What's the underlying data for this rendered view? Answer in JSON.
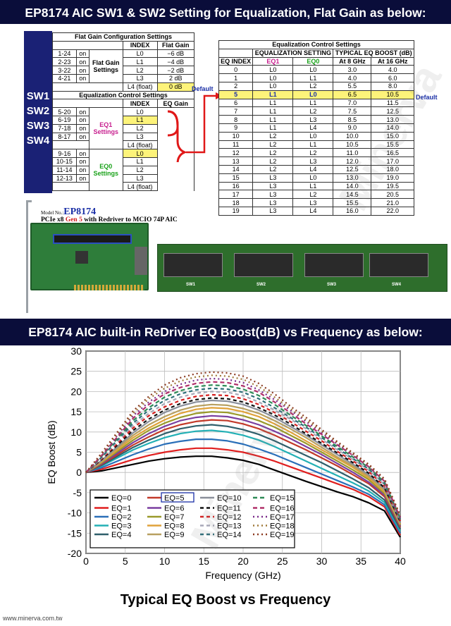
{
  "header": {
    "title1": "EP8174 AIC SW1 & SW2 Setting for Equalization, Flat Gain as below:",
    "title2": "EP8174 AIC built-in ReDriver EQ Boost(dB) vs Frequency as below:"
  },
  "switches": [
    "SW1",
    "SW2",
    "SW3",
    "SW4"
  ],
  "flat_gain": {
    "title": "Flat Gain Configuration Settings",
    "col_index": "INDEX",
    "col_gain": "Flat Gain",
    "group_label": "Flat Gain Settings",
    "rows": [
      {
        "pins": "1-24",
        "state": "on",
        "index": "L0",
        "gain": "−6 dB"
      },
      {
        "pins": "2-23",
        "state": "on",
        "index": "L1",
        "gain": "−4 dB"
      },
      {
        "pins": "3-22",
        "state": "on",
        "index": "L2",
        "gain": "−2 dB"
      },
      {
        "pins": "4-21",
        "state": "on",
        "index": "L3",
        "gain": "2 dB"
      },
      {
        "pins": "",
        "state": "",
        "index": "L4 (float)",
        "gain": "0 dB"
      }
    ],
    "default_label": "Default"
  },
  "eq_control_left": {
    "title": "Equalization Control Settings",
    "col_index": "INDEX",
    "col_gain": "EQ Gain",
    "eq1_label": "EQ1 Settings",
    "eq0_label": "EQ0 Settings",
    "eq1_rows": [
      {
        "pins": "5-20",
        "state": "on",
        "index": "L0"
      },
      {
        "pins": "6-19",
        "state": "on",
        "index": "L1"
      },
      {
        "pins": "7-18",
        "state": "on",
        "index": "L2"
      },
      {
        "pins": "8-17",
        "state": "on",
        "index": "L3"
      },
      {
        "pins": "",
        "state": "",
        "index": "L4 (float)"
      }
    ],
    "eq0_rows": [
      {
        "pins": "9-16",
        "state": "on",
        "index": "L0"
      },
      {
        "pins": "10-15",
        "state": "on",
        "index": "L1"
      },
      {
        "pins": "11-14",
        "state": "on",
        "index": "L2"
      },
      {
        "pins": "12-13",
        "state": "on",
        "index": "L3"
      },
      {
        "pins": "",
        "state": "",
        "index": "L4 (float)"
      }
    ]
  },
  "eq_table": {
    "title": "Equalization Control Settings",
    "h_setting": "EQUALIZATION SETTING",
    "h_boost": "TYPICAL EQ BOOST (dB)",
    "cols": [
      "EQ INDEX",
      "EQ1",
      "EQ0",
      "At 8 GHz",
      "At 16 GHz"
    ],
    "rows": [
      [
        "0",
        "L0",
        "L0",
        "3.0",
        "4.0"
      ],
      [
        "1",
        "L0",
        "L1",
        "4.0",
        "6.0"
      ],
      [
        "2",
        "L0",
        "L2",
        "5.5",
        "8.0"
      ],
      [
        "5",
        "L1",
        "L0",
        "6.5",
        "10.5"
      ],
      [
        "6",
        "L1",
        "L1",
        "7.0",
        "11.5"
      ],
      [
        "7",
        "L1",
        "L2",
        "7.5",
        "12.5"
      ],
      [
        "8",
        "L1",
        "L3",
        "8.5",
        "13.0"
      ],
      [
        "9",
        "L1",
        "L4",
        "9.0",
        "14.0"
      ],
      [
        "10",
        "L2",
        "L0",
        "10.0",
        "15.0"
      ],
      [
        "11",
        "L2",
        "L1",
        "10.5",
        "15.5"
      ],
      [
        "12",
        "L2",
        "L2",
        "11.0",
        "16.5"
      ],
      [
        "13",
        "L2",
        "L3",
        "12.0",
        "17.0"
      ],
      [
        "14",
        "L2",
        "L4",
        "12.5",
        "18.0"
      ],
      [
        "15",
        "L3",
        "L0",
        "13.0",
        "19.0"
      ],
      [
        "16",
        "L3",
        "L1",
        "14.0",
        "19.5"
      ],
      [
        "17",
        "L3",
        "L2",
        "14.5",
        "20.5"
      ],
      [
        "18",
        "L3",
        "L3",
        "15.5",
        "21.0"
      ],
      [
        "19",
        "L3",
        "L4",
        "16.0",
        "22.0"
      ]
    ],
    "default_label": "Default"
  },
  "product": {
    "model_prefix": "Model No.:",
    "model": "EP8174",
    "desc_a": "PCIe x8 ",
    "desc_gen": "Gen 5",
    "desc_b": " with Redriver to MCIO 74P AIC",
    "sw_labels": [
      "SW1",
      "SW2",
      "SW3",
      "SW4"
    ]
  },
  "footer": {
    "url": "www.minerva.com.tw",
    "caption": "Typical EQ Boost vs Frequency"
  },
  "watermark": "Minerva",
  "chart_data": {
    "type": "line",
    "title": "",
    "xlabel": "Frequency (GHz)",
    "ylabel": "EQ Boost (dB)",
    "xlim": [
      0,
      40
    ],
    "ylim": [
      -20,
      30
    ],
    "xticks": [
      0,
      5,
      10,
      15,
      20,
      25,
      30,
      35,
      40
    ],
    "yticks": [
      -20,
      -15,
      -10,
      -5,
      0,
      5,
      10,
      15,
      20,
      25,
      30
    ],
    "grid": true,
    "legend_position": "bottom-left",
    "x": [
      0,
      2,
      4,
      6,
      8,
      10,
      12,
      14,
      16,
      18,
      20,
      22,
      24,
      26,
      28,
      30,
      32,
      34,
      36,
      38,
      40
    ],
    "series": [
      {
        "name": "EQ=0",
        "color": "#000000",
        "dash": "",
        "values": [
          0,
          0.4,
          1.2,
          2.0,
          2.8,
          3.4,
          3.8,
          4.0,
          4.0,
          3.6,
          3.0,
          2.0,
          0.6,
          -0.8,
          -2.2,
          -3.5,
          -4.8,
          -6.0,
          -7.5,
          -9.5,
          -16
        ]
      },
      {
        "name": "EQ=1",
        "color": "#e01f1f",
        "dash": "",
        "values": [
          0,
          0.8,
          2.0,
          3.2,
          4.2,
          5.0,
          5.6,
          6.0,
          6.0,
          5.6,
          5.0,
          4.0,
          2.8,
          1.4,
          0.0,
          -1.4,
          -2.8,
          -4.2,
          -6.0,
          -8.5,
          -15.5
        ]
      },
      {
        "name": "EQ=2",
        "color": "#2a6fb8",
        "dash": "",
        "values": [
          0,
          1.2,
          2.8,
          4.4,
          5.8,
          7.0,
          7.7,
          8.2,
          8.2,
          7.8,
          7.0,
          5.8,
          4.4,
          2.8,
          1.2,
          -0.4,
          -2.0,
          -3.6,
          -5.4,
          -8.0,
          -15
        ]
      },
      {
        "name": "EQ=3",
        "color": "#23b0b5",
        "dash": "",
        "values": [
          0,
          1.6,
          3.6,
          5.6,
          7.2,
          8.6,
          9.6,
          10.2,
          10.4,
          10.0,
          9.2,
          8.0,
          6.4,
          4.6,
          2.8,
          1.0,
          -0.8,
          -2.6,
          -4.6,
          -7.4,
          -14.5
        ]
      },
      {
        "name": "EQ=4",
        "color": "#2f5f6b",
        "dash": "",
        "values": [
          0,
          1.8,
          4.0,
          6.2,
          8.0,
          9.6,
          10.8,
          11.5,
          11.8,
          11.4,
          10.6,
          9.4,
          7.8,
          6.0,
          4.2,
          2.4,
          0.4,
          -1.6,
          -3.8,
          -6.8,
          -14
        ]
      },
      {
        "name": "EQ=5",
        "color": "#c23a2a",
        "dash": "",
        "values": [
          0,
          2.0,
          4.4,
          6.8,
          8.8,
          10.6,
          11.8,
          12.6,
          13.0,
          12.8,
          12.0,
          10.8,
          9.2,
          7.4,
          5.6,
          3.6,
          1.6,
          -0.6,
          -2.8,
          -6.0,
          -13.5
        ]
      },
      {
        "name": "EQ=6",
        "color": "#7a3fa0",
        "dash": "",
        "values": [
          0,
          2.2,
          4.8,
          7.4,
          9.6,
          11.4,
          12.8,
          13.6,
          14.0,
          13.8,
          13.0,
          11.8,
          10.2,
          8.4,
          6.4,
          4.4,
          2.2,
          0.0,
          -2.4,
          -5.6,
          -13.2
        ]
      },
      {
        "name": "EQ=7",
        "color": "#9a9a2a",
        "dash": "",
        "values": [
          0,
          2.4,
          5.2,
          8.0,
          10.4,
          12.2,
          13.6,
          14.6,
          15.0,
          14.8,
          14.0,
          12.8,
          11.2,
          9.2,
          7.2,
          5.0,
          2.8,
          0.6,
          -1.8,
          -5.2,
          -13
        ]
      },
      {
        "name": "EQ=8",
        "color": "#e0a23a",
        "dash": "",
        "values": [
          0,
          2.6,
          5.6,
          8.6,
          11.0,
          13.0,
          14.6,
          15.6,
          16.0,
          15.8,
          15.0,
          13.8,
          12.0,
          10.0,
          7.8,
          5.6,
          3.4,
          1.2,
          -1.4,
          -4.8,
          -12.8
        ]
      },
      {
        "name": "EQ=9",
        "color": "#b8a060",
        "dash": "",
        "values": [
          0,
          2.8,
          6.0,
          9.2,
          11.8,
          13.8,
          15.4,
          16.4,
          16.8,
          16.6,
          15.8,
          14.6,
          12.8,
          10.8,
          8.6,
          6.2,
          3.8,
          1.6,
          -1.0,
          -4.4,
          -12.6
        ]
      },
      {
        "name": "EQ=10",
        "color": "#8a8f9a",
        "dash": "",
        "values": [
          0,
          3.0,
          6.4,
          9.8,
          12.6,
          14.8,
          16.4,
          17.4,
          17.8,
          17.6,
          16.8,
          15.4,
          13.6,
          11.4,
          9.2,
          6.8,
          4.4,
          2.0,
          -0.6,
          -4.0,
          -12.4
        ]
      },
      {
        "name": "EQ=11",
        "color": "#111111",
        "dash": "5,4",
        "values": [
          0,
          3.2,
          6.8,
          10.4,
          13.2,
          15.4,
          17.0,
          18.0,
          18.4,
          18.2,
          17.4,
          16.0,
          14.2,
          12.0,
          9.6,
          7.2,
          4.8,
          2.4,
          -0.2,
          -3.8,
          -12.2
        ]
      },
      {
        "name": "EQ=12",
        "color": "#d62020",
        "dash": "5,4",
        "values": [
          0,
          3.4,
          7.2,
          11.0,
          14.0,
          16.2,
          17.8,
          18.8,
          19.2,
          19.0,
          18.2,
          16.8,
          14.8,
          12.6,
          10.2,
          7.8,
          5.2,
          2.8,
          0.2,
          -3.4,
          -12
        ]
      },
      {
        "name": "EQ=13",
        "color": "#a8a8b8",
        "dash": "5,4",
        "values": [
          0,
          3.6,
          7.6,
          11.6,
          14.6,
          17.0,
          18.6,
          19.6,
          20.0,
          19.8,
          19.0,
          17.4,
          15.4,
          13.2,
          10.8,
          8.2,
          5.6,
          3.2,
          0.6,
          -3.0,
          -11.8
        ]
      },
      {
        "name": "EQ=14",
        "color": "#2f6f7a",
        "dash": "5,4",
        "values": [
          0,
          3.8,
          8.0,
          12.2,
          15.4,
          17.8,
          19.4,
          20.4,
          20.8,
          20.6,
          19.8,
          18.2,
          16.0,
          13.6,
          11.2,
          8.6,
          6.0,
          3.4,
          0.8,
          -2.8,
          -11.6
        ]
      },
      {
        "name": "EQ=15",
        "color": "#2e8b57",
        "dash": "6,4",
        "values": [
          0,
          4.0,
          8.4,
          12.8,
          16.0,
          18.6,
          20.2,
          21.2,
          21.6,
          21.4,
          20.6,
          19.0,
          16.8,
          14.2,
          11.6,
          9.0,
          6.4,
          3.8,
          1.2,
          -2.4,
          -11.4
        ]
      },
      {
        "name": "EQ=16",
        "color": "#b0306a",
        "dash": "6,4",
        "values": [
          0,
          4.2,
          8.8,
          13.4,
          16.8,
          19.4,
          21.0,
          22.0,
          22.4,
          22.2,
          21.4,
          19.8,
          17.4,
          14.8,
          12.0,
          9.4,
          6.8,
          4.2,
          1.4,
          -2.2,
          -11.2
        ]
      },
      {
        "name": "EQ=17",
        "color": "#7a2a8a",
        "dash": "2,4",
        "values": [
          0,
          4.4,
          9.2,
          14.0,
          17.4,
          20.0,
          21.8,
          22.8,
          23.2,
          23.0,
          22.2,
          20.4,
          18.0,
          15.4,
          12.6,
          9.8,
          7.0,
          4.4,
          1.6,
          -2.0,
          -11
        ]
      },
      {
        "name": "EQ=18",
        "color": "#a07a3a",
        "dash": "2,4",
        "values": [
          0,
          4.6,
          9.6,
          14.6,
          18.2,
          20.8,
          22.6,
          23.6,
          24.0,
          23.8,
          23.0,
          21.2,
          18.6,
          15.8,
          13.0,
          10.2,
          7.4,
          4.6,
          1.8,
          -1.8,
          -10.8
        ]
      },
      {
        "name": "EQ=19",
        "color": "#8b3a20",
        "dash": "2,4",
        "values": [
          0,
          4.8,
          10.0,
          15.2,
          18.8,
          21.6,
          23.4,
          24.4,
          24.8,
          24.6,
          23.8,
          22.0,
          19.4,
          16.4,
          13.6,
          10.6,
          7.6,
          4.8,
          2.0,
          -1.6,
          -10.6
        ]
      }
    ]
  }
}
